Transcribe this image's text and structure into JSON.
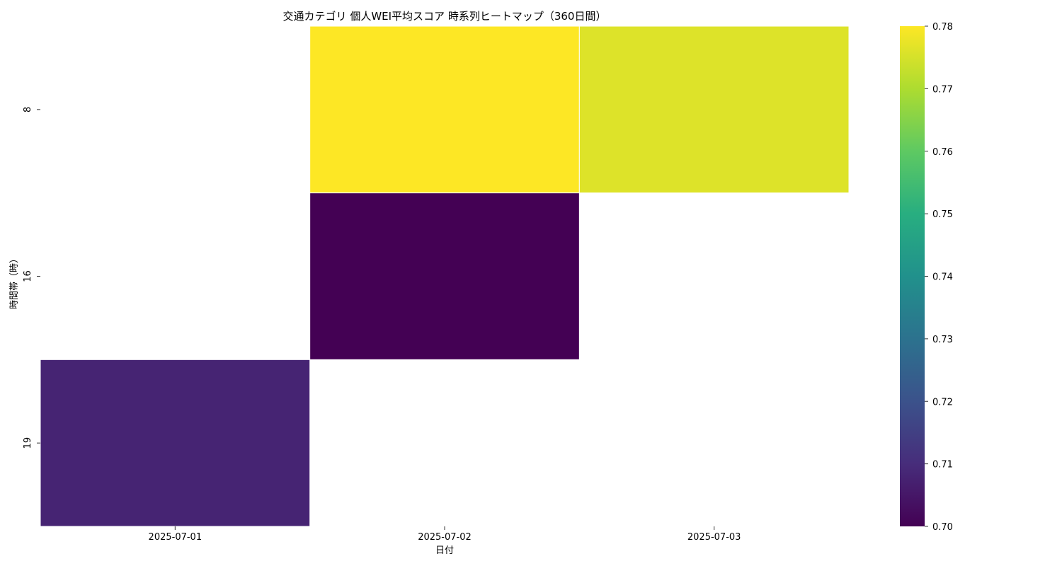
{
  "chart_data": {
    "type": "heatmap",
    "title": "交通カテゴリ 個人WEI平均スコア 時系列ヒートマップ（360日間）",
    "xlabel": "日付",
    "ylabel": "時間帯（時）",
    "x_categories": [
      "2025-07-01",
      "2025-07-02",
      "2025-07-03"
    ],
    "y_categories": [
      "8",
      "16",
      "19"
    ],
    "values": [
      [
        null,
        0.78,
        0.776
      ],
      [
        null,
        0.7,
        null
      ],
      [
        0.708,
        null,
        null
      ]
    ],
    "colorbar": {
      "colormap": "viridis",
      "range": [
        0.7,
        0.78
      ],
      "ticks": [
        "0.70",
        "0.71",
        "0.72",
        "0.73",
        "0.74",
        "0.75",
        "0.76",
        "0.77",
        "0.78"
      ]
    }
  }
}
